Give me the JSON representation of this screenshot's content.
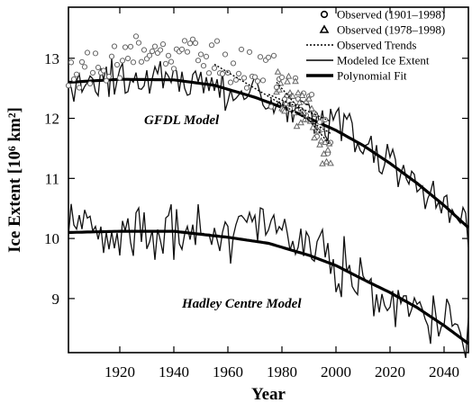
{
  "chart_data": {
    "type": "line",
    "xlabel": "Year",
    "ylabel": "Ice Extent [10⁶ km²]",
    "xlim": [
      1901,
      2049
    ],
    "ylim": [
      8.1,
      13.85
    ],
    "x_ticks": [
      1920,
      1940,
      1960,
      1980,
      2000,
      2020,
      2040
    ],
    "y_ticks": [
      9,
      10,
      11,
      12,
      13
    ],
    "grid": false,
    "legend_placement": "top-right",
    "legend": [
      {
        "label": "Observed (1901–1998)",
        "marker": "circle"
      },
      {
        "label": "Observed (1978–1998)",
        "marker": "triangle"
      },
      {
        "label": "Observed Trends",
        "marker": "dotted"
      },
      {
        "label": "Modeled Ice Extent",
        "marker": "thin-line"
      },
      {
        "label": "Polynomial Fit",
        "marker": "thick-line"
      }
    ],
    "annotations": [
      {
        "text": "GFDL Model",
        "x": 1929,
        "y": 11.9
      },
      {
        "text": "Hadley Centre Model",
        "x": 1943,
        "y": 8.85
      }
    ],
    "series": [
      {
        "name": "GFDL Model",
        "style": "thin-line",
        "wiggle": 0.24,
        "trend": [
          [
            1901,
            12.62
          ],
          [
            1920,
            12.68
          ],
          [
            1940,
            12.66
          ],
          [
            1955,
            12.55
          ],
          [
            1970,
            12.38
          ],
          [
            1985,
            12.15
          ],
          [
            2000,
            11.85
          ],
          [
            2010,
            11.6
          ],
          [
            2020,
            11.3
          ],
          [
            2030,
            11.0
          ],
          [
            2040,
            10.6
          ],
          [
            2049,
            10.15
          ]
        ]
      },
      {
        "name": "GFDL Model",
        "style": "thick-line",
        "points": [
          [
            1901,
            12.6
          ],
          [
            1920,
            12.65
          ],
          [
            1940,
            12.64
          ],
          [
            1955,
            12.55
          ],
          [
            1970,
            12.35
          ],
          [
            1985,
            12.1
          ],
          [
            2000,
            11.8
          ],
          [
            2010,
            11.55
          ],
          [
            2020,
            11.25
          ],
          [
            2030,
            10.92
          ],
          [
            2040,
            10.55
          ],
          [
            2049,
            10.18
          ]
        ]
      },
      {
        "name": "Hadley Centre Model",
        "style": "thin-line",
        "wiggle": 0.3,
        "trend": [
          [
            1901,
            10.2
          ],
          [
            1920,
            10.15
          ],
          [
            1940,
            10.08
          ],
          [
            1955,
            10.05
          ],
          [
            1965,
            10.15
          ],
          [
            1975,
            10.3
          ],
          [
            1985,
            9.85
          ],
          [
            1995,
            9.75
          ],
          [
            2005,
            9.4
          ],
          [
            2015,
            9.1
          ],
          [
            2025,
            8.9
          ],
          [
            2035,
            8.7
          ],
          [
            2049,
            8.3
          ]
        ]
      },
      {
        "name": "Hadley Centre Model",
        "style": "thick-line",
        "points": [
          [
            1901,
            10.1
          ],
          [
            1920,
            10.12
          ],
          [
            1940,
            10.12
          ],
          [
            1960,
            10.02
          ],
          [
            1975,
            9.92
          ],
          [
            1990,
            9.72
          ],
          [
            2000,
            9.55
          ],
          [
            2010,
            9.32
          ],
          [
            2020,
            9.1
          ],
          [
            2030,
            8.85
          ],
          [
            2040,
            8.55
          ],
          [
            2049,
            8.25
          ]
        ]
      },
      {
        "name": "Observed (1901–1998)",
        "style": "circles",
        "wiggle": 0.3,
        "trend": [
          [
            1901,
            12.75
          ],
          [
            1920,
            12.95
          ],
          [
            1940,
            13.15
          ],
          [
            1950,
            13.2
          ],
          [
            1960,
            12.9
          ],
          [
            1970,
            12.75
          ],
          [
            1980,
            12.55
          ],
          [
            1990,
            12.2
          ],
          [
            1998,
            11.7
          ]
        ]
      },
      {
        "name": "Observed (1978–1998)",
        "style": "triangles",
        "wiggle": 0.3,
        "trend": [
          [
            1978,
            12.45
          ],
          [
            1985,
            12.3
          ],
          [
            1990,
            12.05
          ],
          [
            1995,
            11.6
          ],
          [
            1998,
            11.4
          ]
        ]
      },
      {
        "name": "Observed Trends",
        "style": "dotted",
        "lines": [
          [
            [
              1955,
              12.9
            ],
            [
              1998,
              11.75
            ]
          ],
          [
            [
              1978,
              12.6
            ],
            [
              1998,
              11.55
            ]
          ],
          [
            [
              1975,
              12.4
            ],
            [
              1998,
              11.95
            ]
          ]
        ]
      }
    ]
  }
}
